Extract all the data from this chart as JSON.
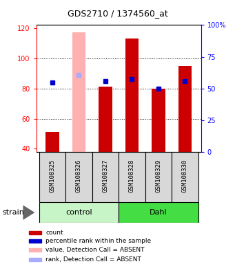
{
  "title": "GDS2710 / 1374560_at",
  "samples": [
    "GSM108325",
    "GSM108326",
    "GSM108327",
    "GSM108328",
    "GSM108329",
    "GSM108330"
  ],
  "red_bar_heights": [
    51,
    117,
    81,
    113,
    80,
    95
  ],
  "blue_square_y": [
    84,
    89,
    85,
    86,
    80,
    85
  ],
  "absent_red": [
    false,
    true,
    false,
    false,
    false,
    false
  ],
  "absent_blue": [
    false,
    true,
    false,
    false,
    false,
    false
  ],
  "ylim_left": [
    38,
    122
  ],
  "ylim_right": [
    0,
    100
  ],
  "yticks_left": [
    40,
    60,
    80,
    100,
    120
  ],
  "yticks_right": [
    0,
    25,
    50,
    75,
    100
  ],
  "ytick_right_labels": [
    "0",
    "25",
    "50",
    "75",
    "100%"
  ],
  "group_colors": {
    "control": "#c8f5c8",
    "Dahl": "#44dd44"
  },
  "bar_width": 0.5,
  "red_color": "#cc0000",
  "red_absent_color": "#ffb0b0",
  "blue_color": "#0000cc",
  "blue_absent_color": "#aaaaff",
  "legend_items": [
    {
      "label": "count",
      "color": "#cc0000"
    },
    {
      "label": "percentile rank within the sample",
      "color": "#0000cc"
    },
    {
      "label": "value, Detection Call = ABSENT",
      "color": "#ffb0b0"
    },
    {
      "label": "rank, Detection Call = ABSENT",
      "color": "#aaaaff"
    }
  ],
  "strain_label": "strain",
  "figsize": [
    3.41,
    3.84
  ],
  "dpi": 100
}
